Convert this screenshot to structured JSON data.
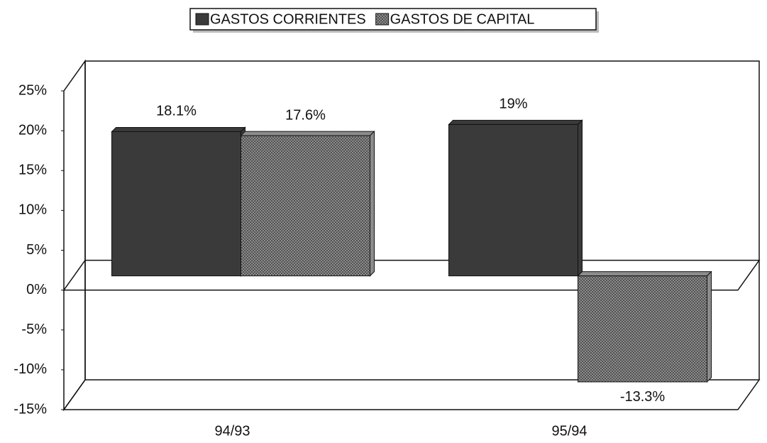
{
  "chart_data": {
    "type": "bar3d",
    "categories": [
      "94/93",
      "95/94"
    ],
    "series": [
      {
        "name": "GASTOS CORRIENTES",
        "color": "#3a3a3a",
        "values": [
          18.1,
          19
        ],
        "value_labels": [
          "18.1%",
          "19%"
        ]
      },
      {
        "name": "GASTOS DE CAPITAL",
        "color": "#8c8c8c",
        "values": [
          17.6,
          -13.3
        ],
        "value_labels": [
          "17.6%",
          "-13.3%"
        ]
      }
    ],
    "ylim": [
      -15,
      25
    ],
    "yticks": [
      {
        "value": -15,
        "label": "-15%"
      },
      {
        "value": -10,
        "label": "-10%"
      },
      {
        "value": -5,
        "label": "-5%"
      },
      {
        "value": 0,
        "label": "0%"
      },
      {
        "value": 5,
        "label": "5%"
      },
      {
        "value": 10,
        "label": "10%"
      },
      {
        "value": 15,
        "label": "15%"
      },
      {
        "value": 20,
        "label": "20%"
      },
      {
        "value": 25,
        "label": "25%"
      }
    ],
    "legend": "top"
  }
}
